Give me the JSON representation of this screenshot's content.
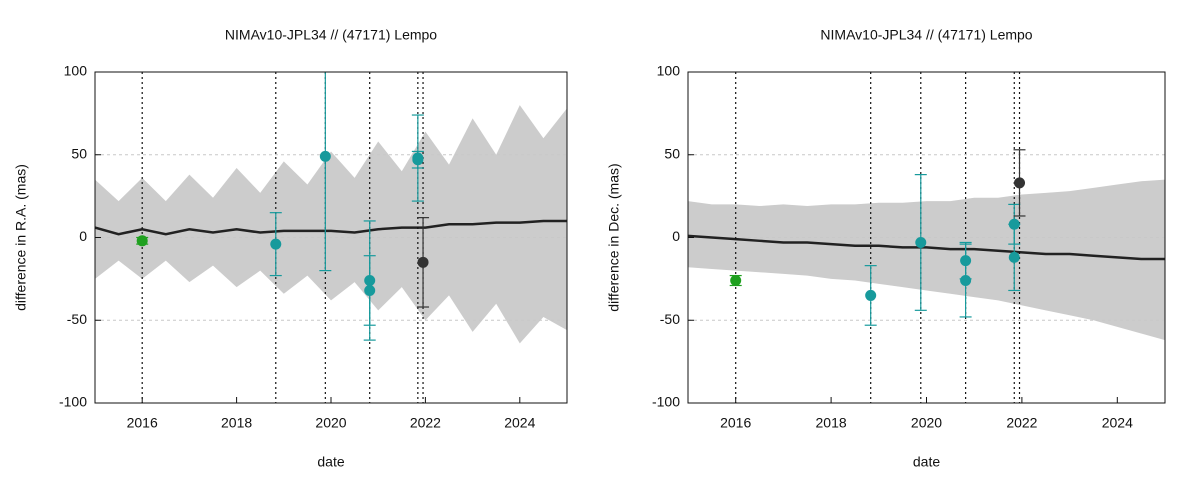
{
  "chart_data": [
    {
      "type": "errorband",
      "title": "NIMAv10-JPL34 // (47171) Lempo",
      "xlabel": "date",
      "ylabel": "difference in R.A. (mas)",
      "xlim": [
        2015,
        2025
      ],
      "xticks": [
        2016,
        2018,
        2020,
        2022,
        2024
      ],
      "ylim": [
        -100,
        100
      ],
      "yticks": [
        -100,
        -50,
        0,
        50,
        100
      ],
      "grid": true,
      "band_color": "#cccccc",
      "mean_color": "#222222",
      "x": [
        2015,
        2015.5,
        2016,
        2016.5,
        2017,
        2017.5,
        2018,
        2018.5,
        2019,
        2019.5,
        2020,
        2020.5,
        2021,
        2021.5,
        2022,
        2022.5,
        2023,
        2023.5,
        2024,
        2024.5,
        2025
      ],
      "band_upper": [
        35,
        22,
        36,
        22,
        38,
        24,
        42,
        27,
        46,
        32,
        52,
        36,
        58,
        40,
        64,
        44,
        72,
        50,
        80,
        60,
        78
      ],
      "band_lower": [
        -25,
        -14,
        -25,
        -14,
        -27,
        -17,
        -30,
        -20,
        -34,
        -23,
        -38,
        -27,
        -44,
        -30,
        -50,
        -35,
        -57,
        -40,
        -64,
        -48,
        -56
      ],
      "mean": [
        6,
        2,
        5,
        2,
        5,
        3,
        5,
        3,
        4,
        4,
        4,
        3,
        5,
        6,
        6,
        8,
        8,
        9,
        9,
        10,
        10
      ],
      "vlines": [
        2016.0,
        2018.83,
        2019.88,
        2020.82,
        2021.84,
        2021.95
      ],
      "points": {
        "x": [
          2016.0,
          2018.83,
          2019.88,
          2020.82,
          2020.82,
          2021.84,
          2021.84,
          2021.95
        ],
        "values": [
          -2,
          -4,
          49,
          -26,
          -32,
          48,
          47,
          -15
        ],
        "errors": [
          2,
          19,
          69,
          36,
          21,
          26,
          5,
          27
        ],
        "colors": [
          "#1fa01f",
          "#179a9c",
          "#179a9c",
          "#179a9c",
          "#179a9c",
          "#179a9c",
          "#179a9c",
          "#333333"
        ]
      }
    },
    {
      "type": "errorband",
      "title": "NIMAv10-JPL34 // (47171) Lempo",
      "xlabel": "date",
      "ylabel": "difference in Dec. (mas)",
      "xlim": [
        2015,
        2025
      ],
      "xticks": [
        2016,
        2018,
        2020,
        2022,
        2024
      ],
      "ylim": [
        -100,
        100
      ],
      "yticks": [
        -100,
        -50,
        0,
        50,
        100
      ],
      "grid": true,
      "band_color": "#cccccc",
      "mean_color": "#222222",
      "x": [
        2015,
        2015.5,
        2016,
        2016.5,
        2017,
        2017.5,
        2018,
        2018.5,
        2019,
        2019.5,
        2020,
        2020.5,
        2021,
        2021.5,
        2022,
        2022.5,
        2023,
        2023.5,
        2024,
        2024.5,
        2025
      ],
      "band_upper": [
        22,
        20,
        20,
        19,
        20,
        19,
        20,
        20,
        21,
        21,
        22,
        22,
        24,
        24,
        26,
        27,
        28,
        30,
        32,
        34,
        35
      ],
      "band_lower": [
        -18,
        -19,
        -20,
        -21,
        -22,
        -23,
        -25,
        -26,
        -28,
        -30,
        -32,
        -34,
        -36,
        -38,
        -41,
        -44,
        -47,
        -50,
        -54,
        -58,
        -62
      ],
      "mean": [
        1,
        0,
        -1,
        -2,
        -3,
        -3,
        -4,
        -5,
        -5,
        -6,
        -6,
        -7,
        -7,
        -8,
        -9,
        -10,
        -10,
        -11,
        -12,
        -13,
        -13
      ],
      "vlines": [
        2016.0,
        2018.83,
        2019.88,
        2020.82,
        2021.84,
        2021.95
      ],
      "points": {
        "x": [
          2016.0,
          2018.83,
          2019.88,
          2020.82,
          2020.82,
          2021.84,
          2021.84,
          2021.95
        ],
        "values": [
          -26,
          -35,
          -3,
          -14,
          -26,
          8,
          -12,
          33
        ],
        "errors": [
          3,
          18,
          41,
          11,
          22,
          12,
          20,
          20
        ],
        "colors": [
          "#1fa01f",
          "#179a9c",
          "#179a9c",
          "#179a9c",
          "#179a9c",
          "#179a9c",
          "#179a9c",
          "#333333"
        ]
      }
    }
  ]
}
